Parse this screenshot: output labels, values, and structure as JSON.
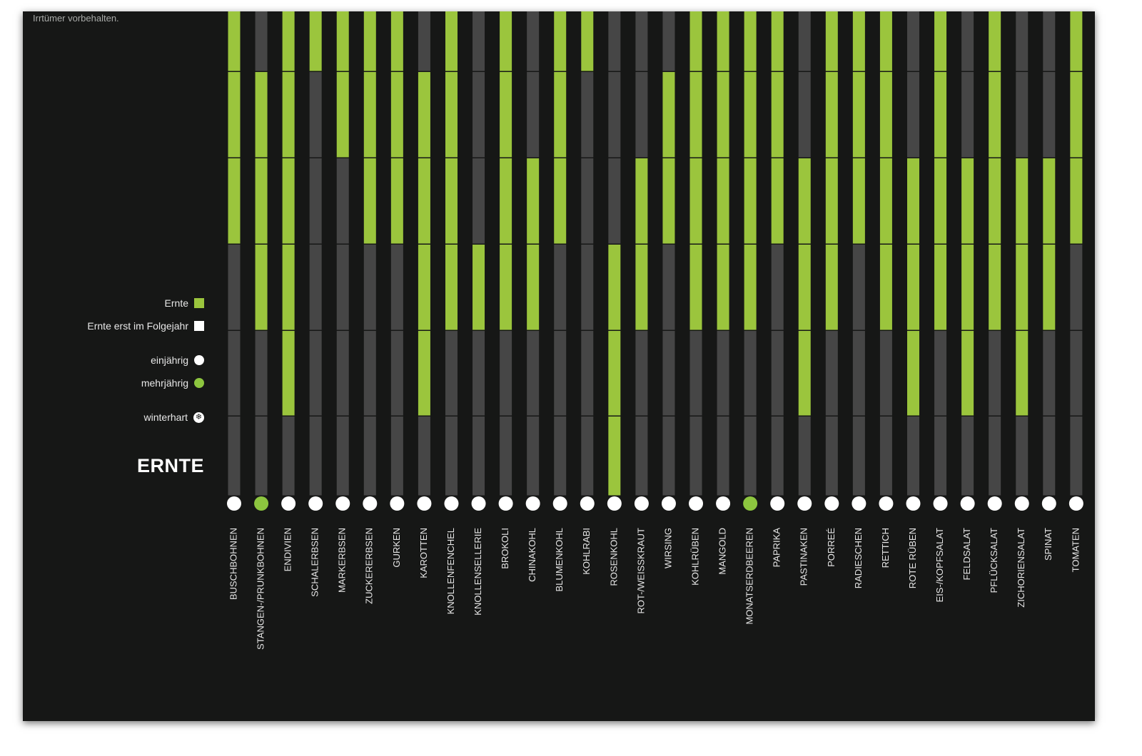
{
  "disclaimer": "Irrtümer vorbehalten.",
  "section_title": "ERNTE",
  "colors": {
    "background": "#161716",
    "harvest": "#9bc53d",
    "track": "#464646",
    "annual": "#ffffff",
    "perennial": "#8dc63f"
  },
  "legend": {
    "harvest": "Ernte",
    "harvest_next_year": "Ernte erst im Folgejahr",
    "annual": "einjährig",
    "perennial": "mehrjährig",
    "winter_hardy": "winterhart"
  },
  "chart_data": {
    "type": "bar",
    "title": "ERNTE",
    "note": "Each column is a vegetable; the visible rows are consecutive harvest periods (month blocks). Green = harvest, dark = no harvest.",
    "rows_visible": 6,
    "categories": [
      "BUSCHBOHNEN",
      "STANGEN-/PRUNKBOHNEN",
      "ENDIVIEN",
      "SCHALERBSEN",
      "MARKERBSEN",
      "ZUCKERERBSEN",
      "GURKEN",
      "KAROTTEN",
      "KNOLLENFENCHEL",
      "KNOLLENSELLERIE",
      "BROKOLI",
      "CHINAKOHL",
      "BLUMENKOHL",
      "KOHLRABI",
      "ROSENKOHL",
      "ROT-/WEISSKRAUT",
      "WIRSING",
      "KOHLRÜBEN",
      "MANGOLD",
      "MONATSERDBEEREN",
      "PAPRIKA",
      "PASTINAKEN",
      "PORREÉ",
      "RADIESCHEN",
      "RETTICH",
      "ROTE RÜBEN",
      "EIS-/KOPFSALAT",
      "FELDSALAT",
      "PFLÜCKSALAT",
      "ZICHORIENSALAT",
      "SPINAT",
      "TOMATEN"
    ],
    "harvest": [
      [
        1,
        1,
        1,
        0,
        0,
        0
      ],
      [
        0,
        1,
        1,
        1,
        0,
        0
      ],
      [
        1,
        1,
        1,
        1,
        1,
        0
      ],
      [
        1,
        0,
        0,
        0,
        0,
        0
      ],
      [
        1,
        1,
        0,
        0,
        0,
        0
      ],
      [
        1,
        1,
        1,
        0,
        0,
        0
      ],
      [
        1,
        1,
        1,
        0,
        0,
        0
      ],
      [
        0,
        1,
        1,
        1,
        1,
        0
      ],
      [
        1,
        1,
        1,
        1,
        0,
        0
      ],
      [
        0,
        0,
        0,
        1,
        0,
        0
      ],
      [
        1,
        1,
        1,
        1,
        0,
        0
      ],
      [
        0,
        0,
        1,
        1,
        0,
        0
      ],
      [
        1,
        1,
        1,
        0,
        0,
        0
      ],
      [
        1,
        0,
        0,
        0,
        0,
        0
      ],
      [
        0,
        0,
        0,
        1,
        1,
        1
      ],
      [
        0,
        0,
        1,
        1,
        0,
        0
      ],
      [
        0,
        1,
        1,
        0,
        0,
        0
      ],
      [
        1,
        1,
        1,
        1,
        0,
        0
      ],
      [
        1,
        1,
        1,
        1,
        0,
        0
      ],
      [
        1,
        1,
        1,
        1,
        0,
        0
      ],
      [
        1,
        1,
        1,
        0,
        0,
        0
      ],
      [
        0,
        0,
        1,
        1,
        1,
        0
      ],
      [
        1,
        1,
        1,
        1,
        0,
        0
      ],
      [
        1,
        1,
        1,
        0,
        0,
        0
      ],
      [
        1,
        1,
        1,
        1,
        0,
        0
      ],
      [
        0,
        0,
        1,
        1,
        1,
        0
      ],
      [
        1,
        1,
        1,
        1,
        0,
        0
      ],
      [
        0,
        0,
        1,
        1,
        1,
        0
      ],
      [
        1,
        1,
        1,
        1,
        0,
        0
      ],
      [
        0,
        0,
        1,
        1,
        1,
        0
      ],
      [
        0,
        0,
        1,
        1,
        0,
        0
      ],
      [
        1,
        1,
        1,
        0,
        0,
        0
      ]
    ],
    "lifecycle": [
      "einjährig",
      "mehrjährig",
      "einjährig",
      "einjährig",
      "einjährig",
      "einjährig",
      "einjährig",
      "einjährig",
      "einjährig",
      "einjährig",
      "einjährig",
      "einjährig",
      "einjährig",
      "einjährig",
      "einjährig",
      "einjährig",
      "einjährig",
      "einjährig",
      "einjährig",
      "mehrjährig",
      "einjährig",
      "einjährig",
      "einjährig",
      "einjährig",
      "einjährig",
      "einjährig",
      "einjährig",
      "einjährig",
      "einjährig",
      "einjährig",
      "einjährig",
      "einjährig"
    ],
    "legend": [
      "Ernte",
      "Ernte erst im Folgejahr",
      "einjährig",
      "mehrjährig",
      "winterhart"
    ]
  }
}
